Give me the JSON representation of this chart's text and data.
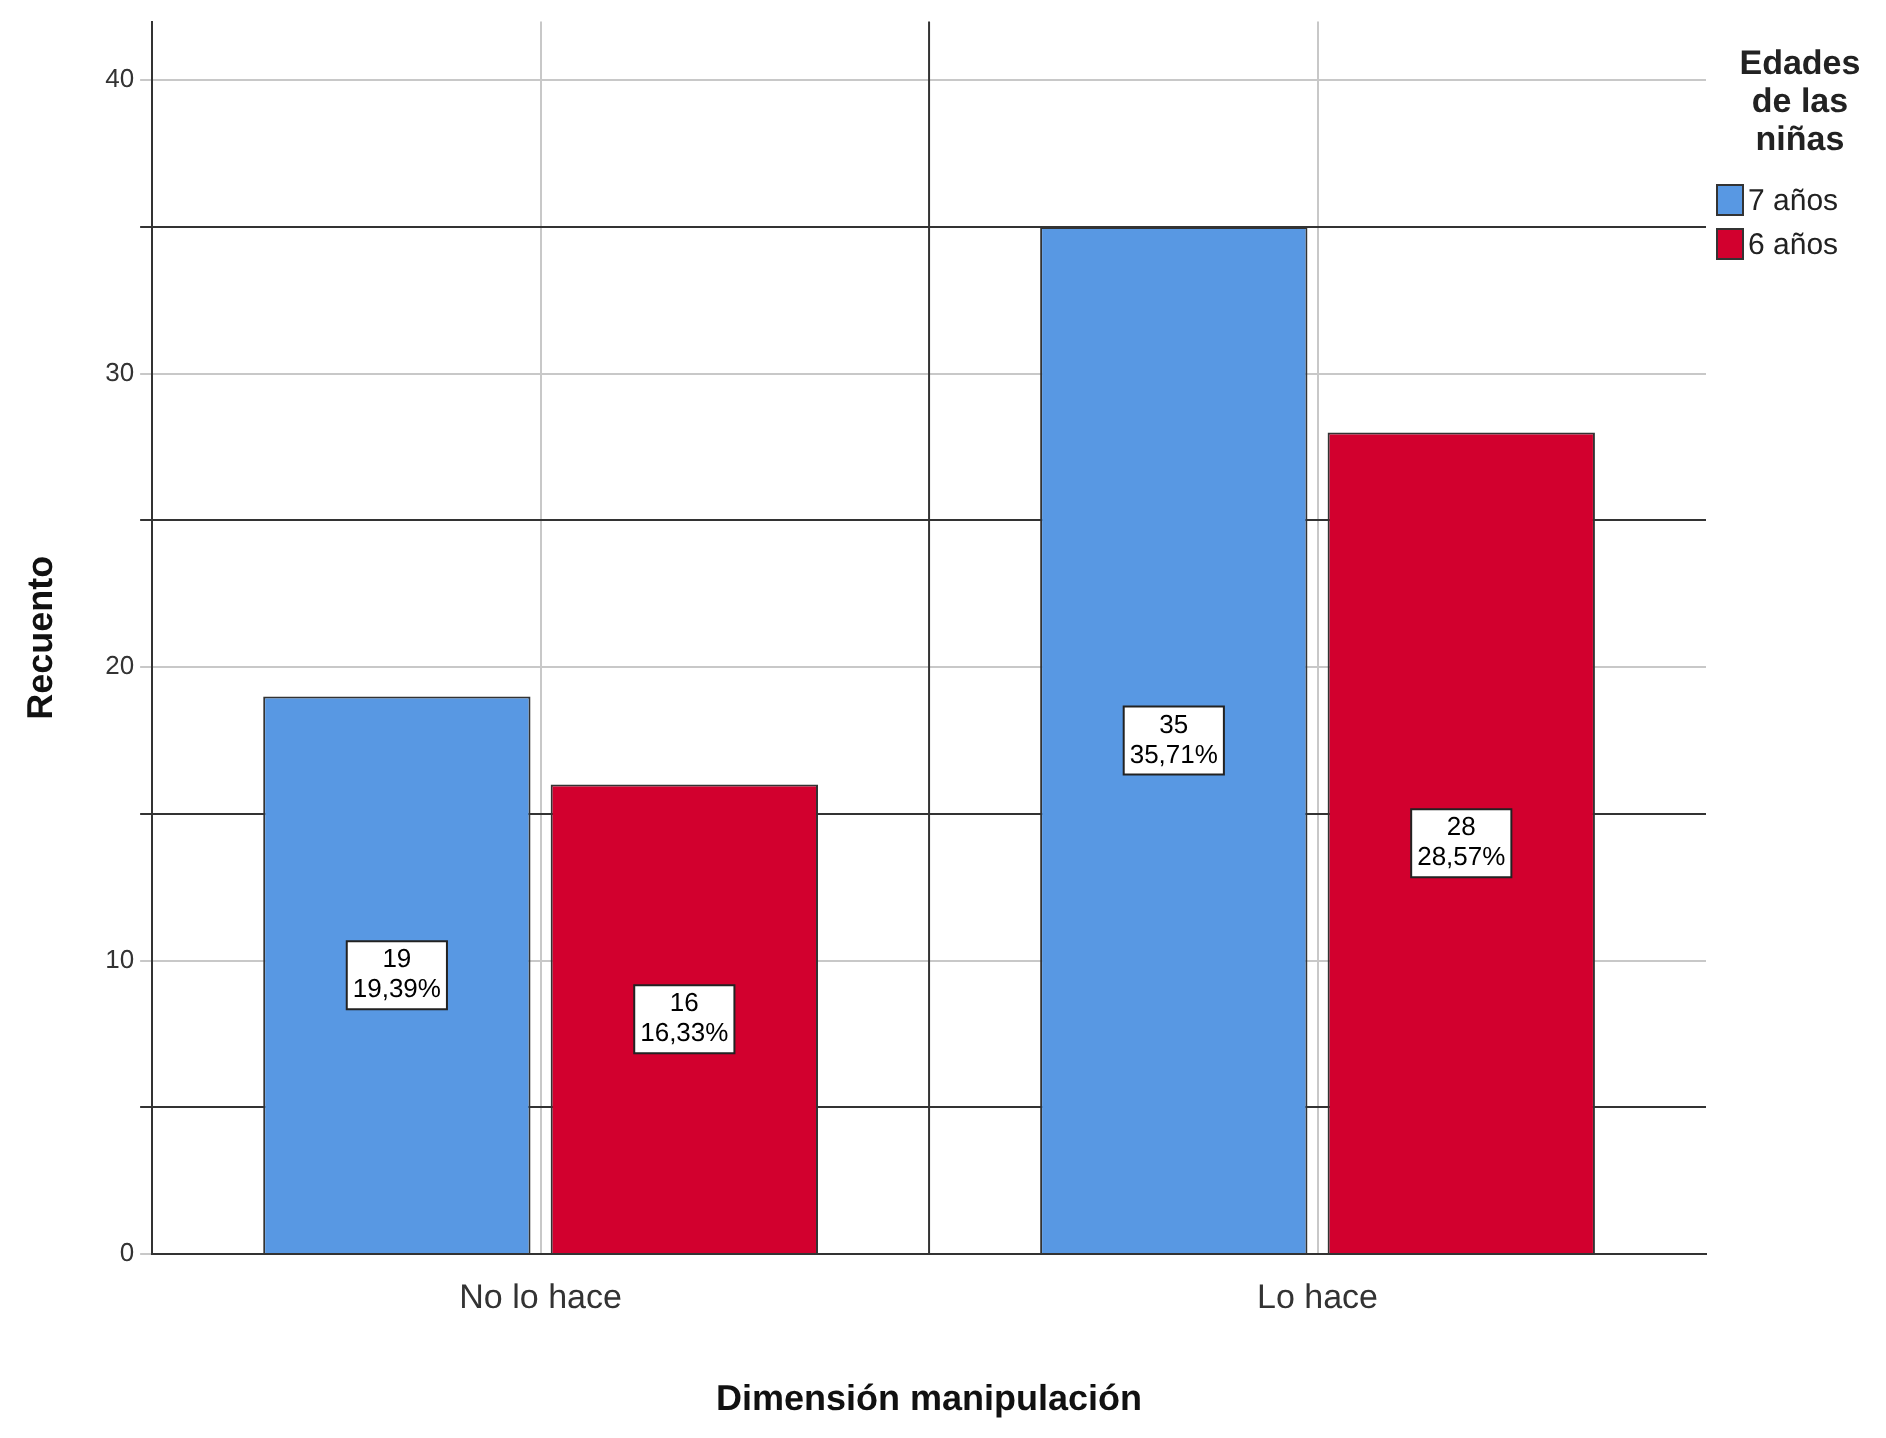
{
  "chart_data": {
    "type": "bar",
    "xlabel": "Dimensión manipulación",
    "ylabel": "Recuento",
    "legend_title": "Edades de las niñas",
    "categories": [
      "No lo hace",
      "Lo hace"
    ],
    "series": [
      {
        "name": "7 años",
        "color": "#5898e3",
        "values": [
          19,
          35
        ],
        "value_labels": [
          "19\n19,39%",
          "35\n35,71%"
        ]
      },
      {
        "name": "6 años",
        "color": "#d2002e",
        "values": [
          16,
          28
        ],
        "value_labels": [
          "16\n16,33%",
          "28\n28,57%"
        ]
      }
    ],
    "ylim": [
      0,
      42
    ],
    "yticks": [
      0,
      {
        "value": 5,
        "label": null
      },
      10,
      {
        "value": 15,
        "label": null
      },
      20,
      {
        "value": 25,
        "label": null
      },
      30,
      {
        "value": 35,
        "label": null
      },
      40
    ],
    "grid": true,
    "legend": "top right"
  }
}
